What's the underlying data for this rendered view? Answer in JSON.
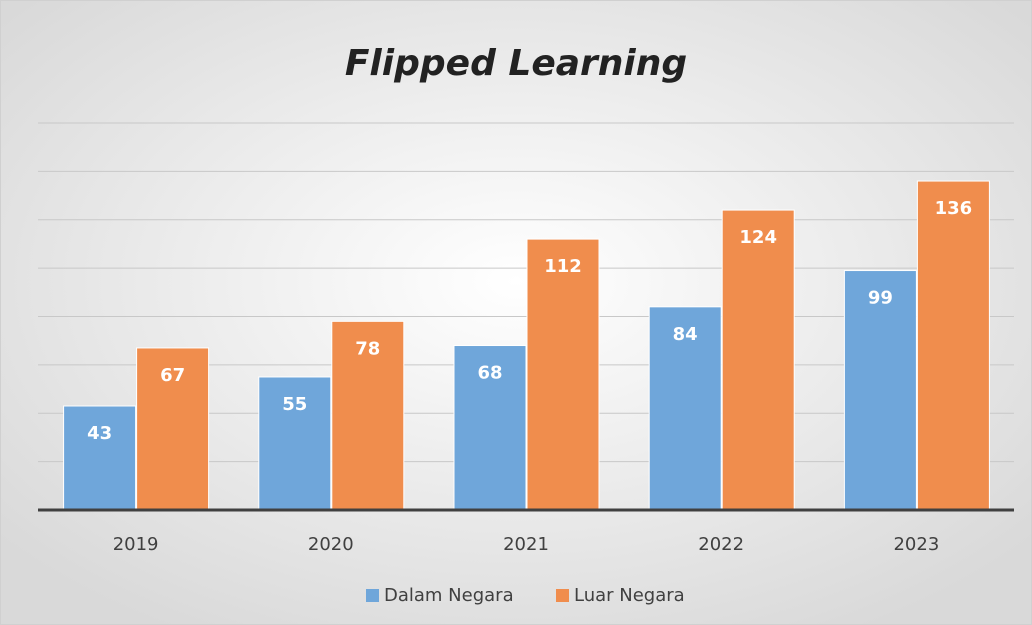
{
  "chart_data": {
    "type": "bar",
    "title": "Flipped Learning",
    "categories": [
      "2019",
      "2020",
      "2021",
      "2022",
      "2023"
    ],
    "series": [
      {
        "name": "Dalam Negara",
        "color": "#6fa6da",
        "values": [
          43,
          55,
          68,
          84,
          99
        ]
      },
      {
        "name": "Luar Negara",
        "color": "#f08d4d",
        "values": [
          67,
          78,
          112,
          124,
          136
        ]
      }
    ],
    "ylim": [
      0,
      160
    ],
    "yticks": [
      0,
      20,
      40,
      60,
      80,
      100,
      120,
      140,
      160
    ],
    "grid": true,
    "legend": "bottom"
  }
}
